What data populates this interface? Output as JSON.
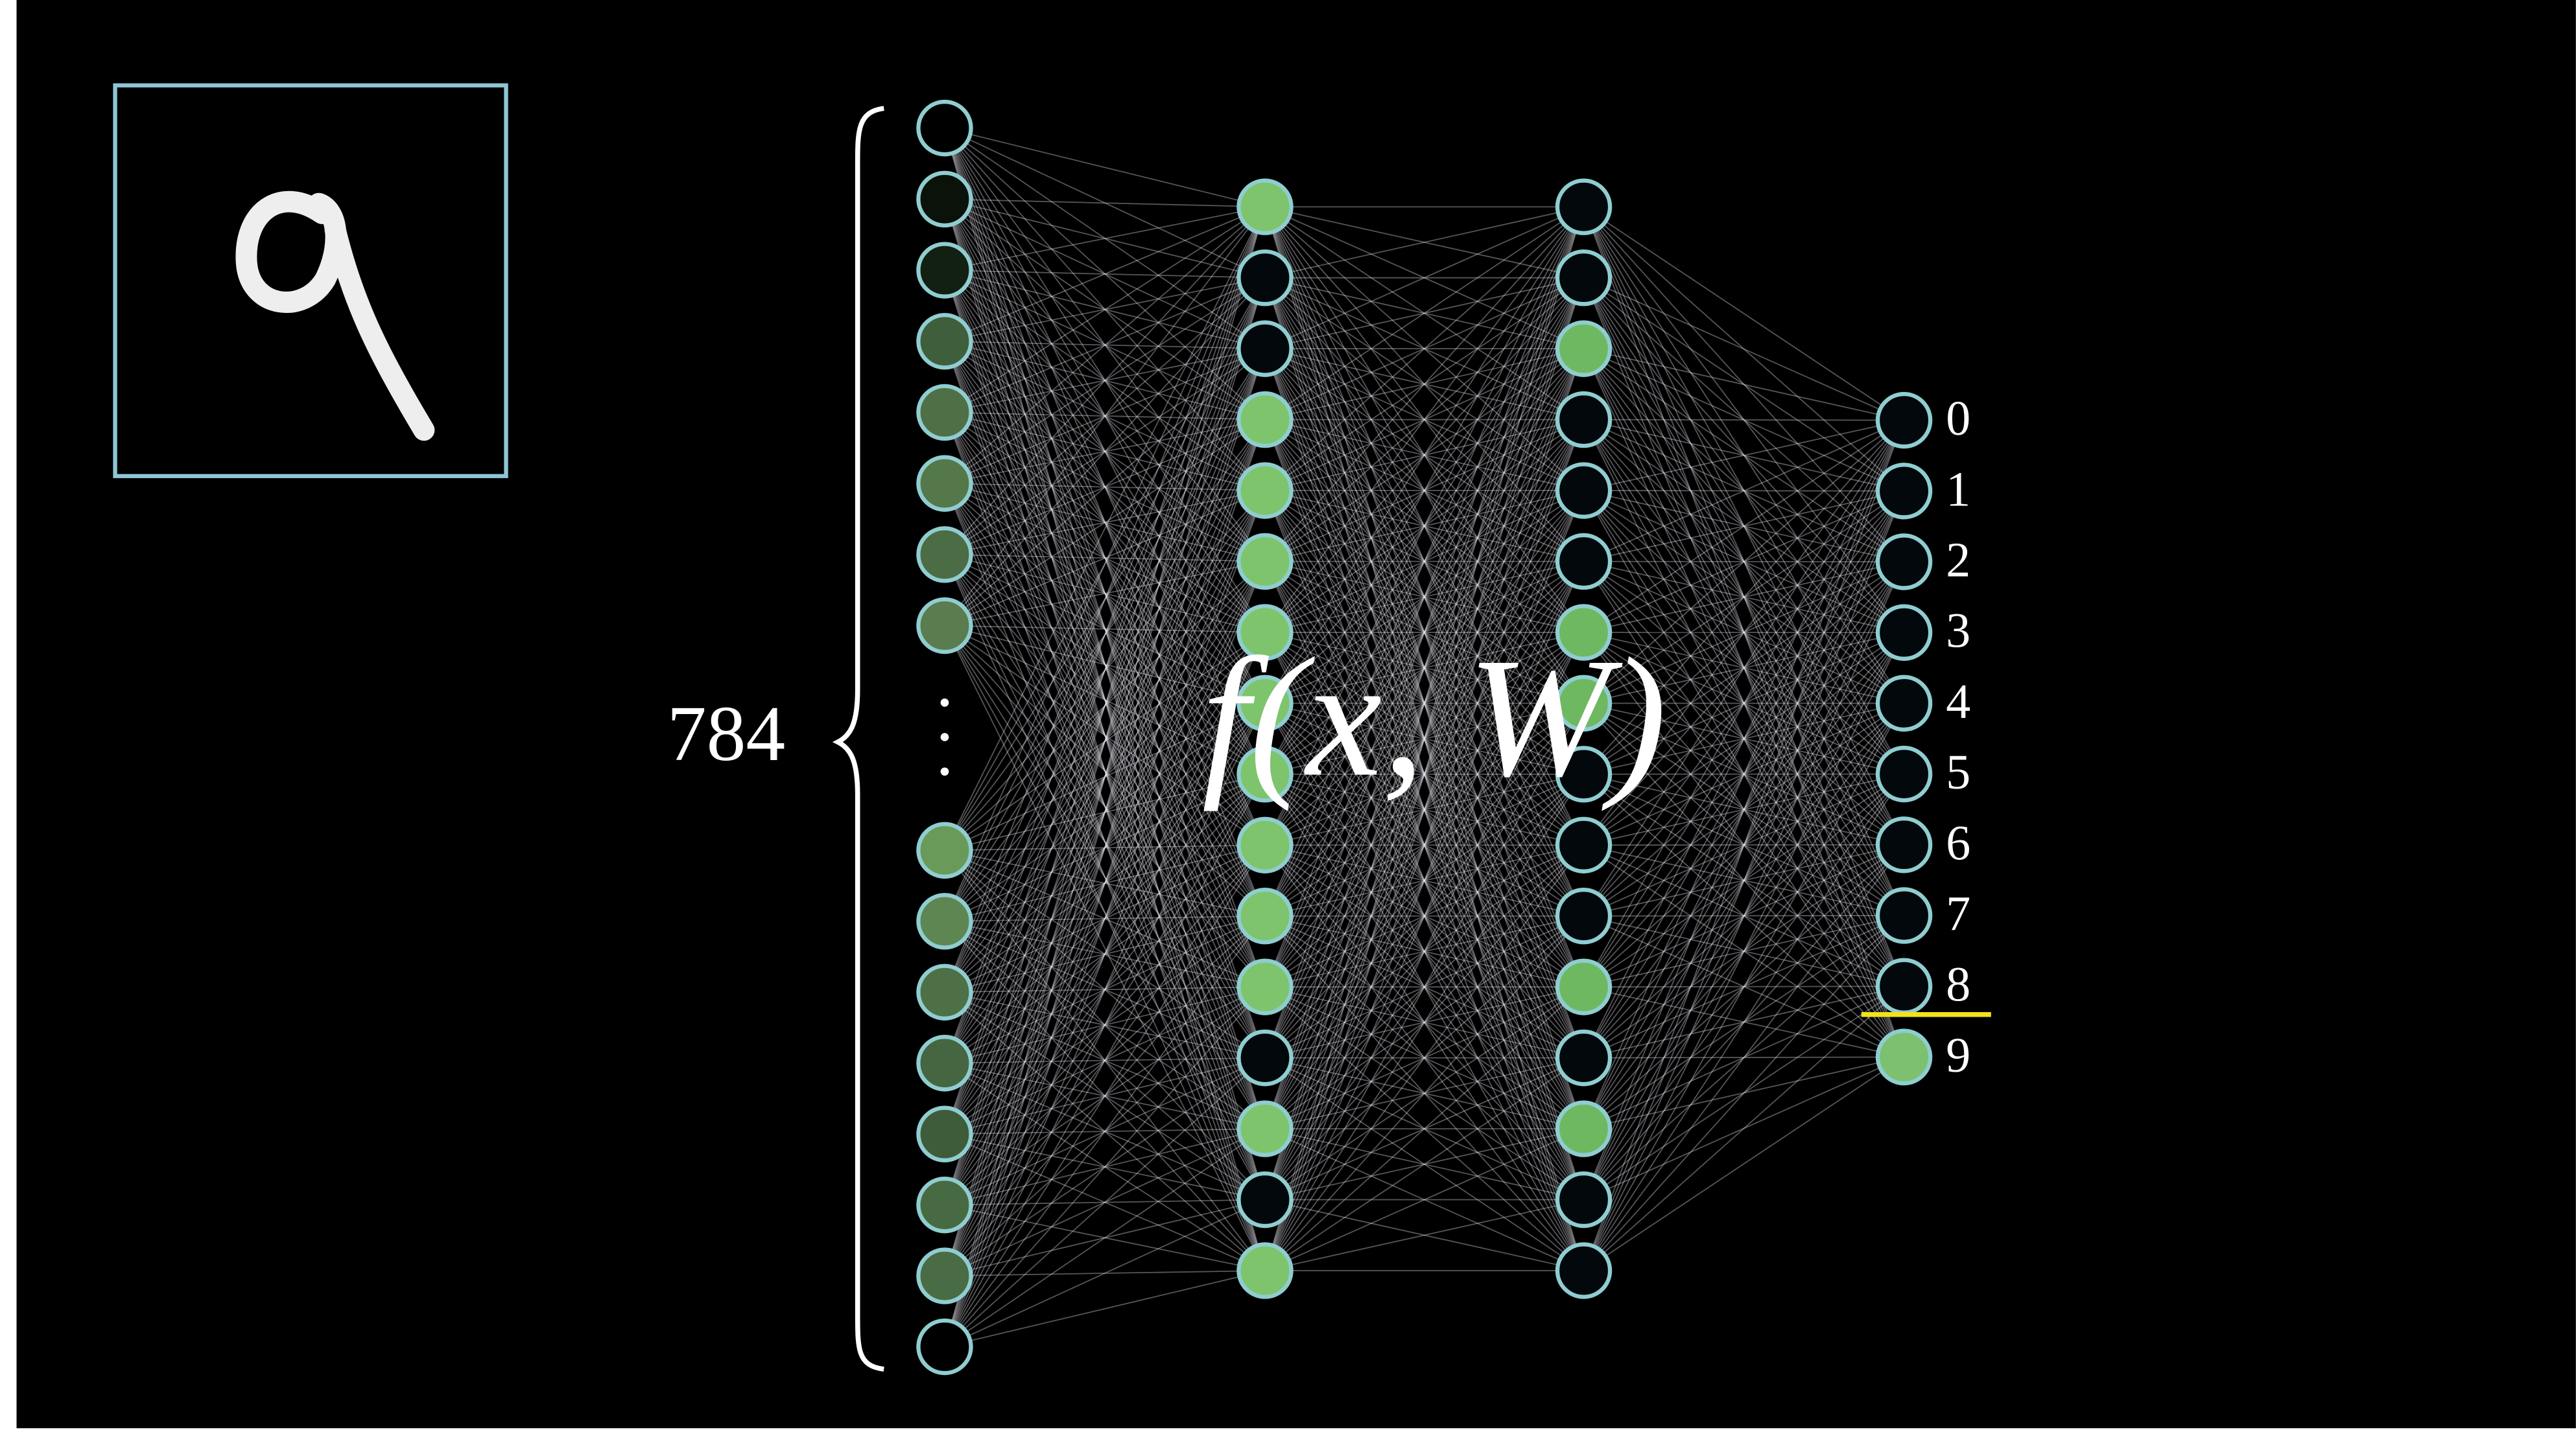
{
  "input_size_label": "784",
  "function_label": "f(x, W)",
  "output_labels": [
    "0",
    "1",
    "2",
    "3",
    "4",
    "5",
    "6",
    "7",
    "8",
    "9"
  ]
}
